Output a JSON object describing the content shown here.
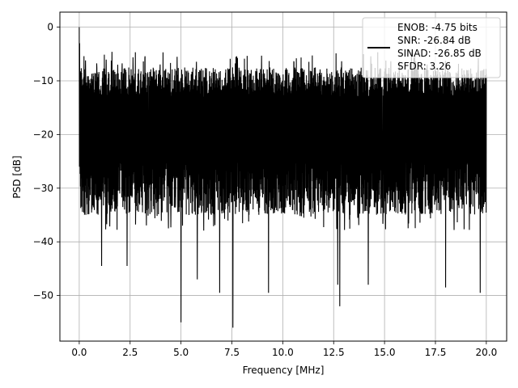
{
  "chart_data": {
    "type": "line",
    "title": "",
    "xlabel": "Frequency [MHz]",
    "ylabel": "PSD [dB]",
    "xlim": [
      -0.95,
      21.0
    ],
    "ylim": [
      -58.5,
      2.8
    ],
    "xticks": [
      0.0,
      2.5,
      5.0,
      7.5,
      10.0,
      12.5,
      15.0,
      17.5,
      20.0
    ],
    "xtick_labels": [
      "0.0",
      "2.5",
      "5.0",
      "7.5",
      "10.0",
      "12.5",
      "15.0",
      "17.5",
      "20.0"
    ],
    "yticks": [
      0,
      -10,
      -20,
      -30,
      -40,
      -50
    ],
    "ytick_labels": [
      "0",
      "−10",
      "−20",
      "−30",
      "−40",
      "−50"
    ],
    "grid": true,
    "legend_placement": "top-right",
    "legend": [
      "ENOB: -4.75 bits",
      "SNR: -26.84 dB",
      "SINAD: -26.85 dB",
      "SFDR: 3.26"
    ],
    "series": [
      {
        "color": "#000000",
        "description_style": "dense noise-floor PSD trace",
        "envelope": {
          "x_range": [
            0.0,
            20.0
          ],
          "upper_typical": -9,
          "lower_typical": -29,
          "peak": {
            "x": 0.0,
            "y": 0.0
          },
          "notable_dips": [
            {
              "x": 1.1,
              "y": -44.5
            },
            {
              "x": 2.35,
              "y": -44.5
            },
            {
              "x": 5.0,
              "y": -55.0
            },
            {
              "x": 5.8,
              "y": -47.0
            },
            {
              "x": 6.9,
              "y": -49.5
            },
            {
              "x": 7.55,
              "y": -56.0
            },
            {
              "x": 9.3,
              "y": -49.5
            },
            {
              "x": 12.8,
              "y": -52.0
            },
            {
              "x": 12.7,
              "y": -48.0
            },
            {
              "x": 14.2,
              "y": -48.0
            },
            {
              "x": 18.0,
              "y": -48.5
            },
            {
              "x": 19.7,
              "y": -49.5
            }
          ]
        }
      }
    ]
  }
}
